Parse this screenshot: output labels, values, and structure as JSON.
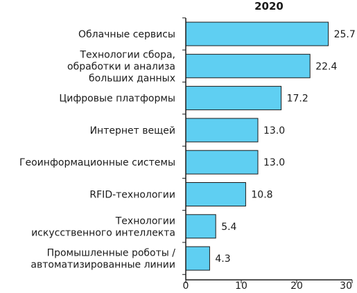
{
  "chart_data": {
    "type": "bar",
    "orientation": "horizontal",
    "title": "2020",
    "xlabel": "",
    "ylabel": "",
    "xlim": [
      0,
      30
    ],
    "xticks": [
      0,
      10,
      20,
      30
    ],
    "grid": false,
    "bar_color": "#5fcff2",
    "bar_edge_color": "#1a1a1a",
    "categories": [
      [
        "Облачные сервисы"
      ],
      [
        "Технологии сбора,",
        "обработки и анализа",
        "больших данных"
      ],
      [
        "Цифровые платформы"
      ],
      [
        "Интернет вещей"
      ],
      [
        "Геоинформационные системы"
      ],
      [
        "RFID-технологии"
      ],
      [
        "Технологии",
        "искусственного интеллекта"
      ],
      [
        "Промышленные роботы /",
        "автоматизированные линии"
      ]
    ],
    "values": [
      25.7,
      22.4,
      17.2,
      13.0,
      13.0,
      10.8,
      5.4,
      4.3
    ],
    "value_labels": [
      "25.7",
      "22.4",
      "17.2",
      "13.0",
      "13.0",
      "10.8",
      "5.4",
      "4.3"
    ]
  }
}
